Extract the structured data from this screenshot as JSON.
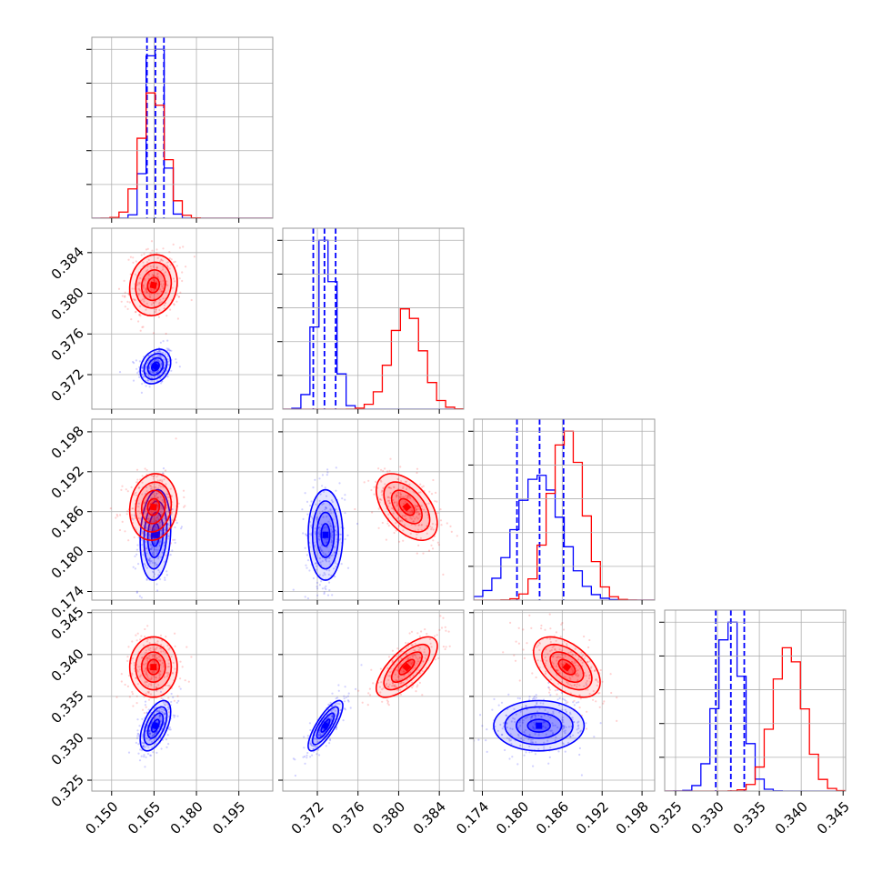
{
  "chart_data": {
    "type": "corner",
    "grid": true,
    "parameters": [
      {
        "range": [
          0.143,
          0.207
        ],
        "ticks": [
          0.15,
          0.165,
          0.18,
          0.195
        ],
        "tick_labels": [
          "0.150",
          "0.165",
          "0.180",
          "0.195"
        ]
      },
      {
        "range": [
          0.3686,
          0.3864
        ],
        "ticks": [
          0.372,
          0.376,
          0.38,
          0.384
        ],
        "tick_labels": [
          "0.372",
          "0.376",
          "0.380",
          "0.384"
        ]
      },
      {
        "range": [
          0.1727,
          0.1999
        ],
        "ticks": [
          0.174,
          0.18,
          0.186,
          0.192,
          0.198
        ],
        "tick_labels": [
          "0.174",
          "0.180",
          "0.186",
          "0.192",
          "0.198"
        ]
      },
      {
        "range": [
          0.3237,
          0.3453
        ],
        "ticks": [
          0.325,
          0.33,
          0.335,
          0.34,
          0.345
        ],
        "tick_labels": [
          "0.325",
          "0.330",
          "0.335",
          "0.340",
          "0.345"
        ]
      }
    ],
    "series": [
      {
        "color": "#0000ff",
        "means": [
          0.1655,
          0.3728,
          0.1825,
          0.3315
        ],
        "sigmas": [
          0.0027,
          0.00085,
          0.0034,
          0.0015
        ],
        "correlations": {
          "1-0": 0.25,
          "2-0": 0.15,
          "2-1": 0.0,
          "3-0": 0.55,
          "3-1": 0.8,
          "3-2": 0.0
        },
        "quantile_lines": [
          [
            0.1625,
            0.1655,
            0.1685
          ],
          [
            0.3716,
            0.3727,
            0.3738
          ],
          [
            0.1792,
            0.1826,
            0.1862
          ],
          [
            0.3298,
            0.3316,
            0.3332
          ]
        ]
      },
      {
        "color": "#ff0000",
        "means": [
          0.1648,
          0.3808,
          0.1867,
          0.3385
        ],
        "sigmas": [
          0.0042,
          0.0015,
          0.0025,
          0.0018
        ],
        "correlations": {
          "1-0": 0.1,
          "2-0": 0.1,
          "2-1": -0.5,
          "3-0": 0.0,
          "3-1": 0.7,
          "3-2": -0.5
        }
      }
    ]
  }
}
